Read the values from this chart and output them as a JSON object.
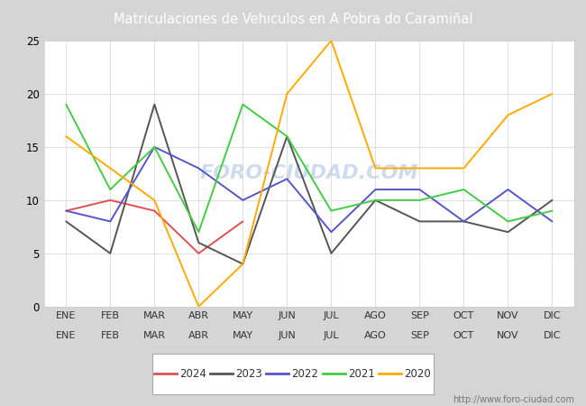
{
  "title": "Matriculaciones de Vehiculos en A Pobra do Caramiñal",
  "title_color": "#ffffff",
  "title_bg_color": "#5b8bd0",
  "months": [
    "ENE",
    "FEB",
    "MAR",
    "ABR",
    "MAY",
    "JUN",
    "JUL",
    "AGO",
    "SEP",
    "OCT",
    "NOV",
    "DIC"
  ],
  "series": {
    "2024": {
      "color": "#e05050",
      "data": [
        9,
        10,
        9,
        5,
        8,
        null,
        null,
        null,
        null,
        null,
        null,
        null
      ]
    },
    "2023": {
      "color": "#555555",
      "data": [
        8,
        5,
        19,
        6,
        4,
        16,
        5,
        10,
        8,
        8,
        7,
        10
      ]
    },
    "2022": {
      "color": "#5555cc",
      "data": [
        9,
        8,
        15,
        13,
        10,
        12,
        7,
        11,
        11,
        8,
        11,
        8
      ]
    },
    "2021": {
      "color": "#44cc44",
      "data": [
        19,
        11,
        15,
        7,
        19,
        16,
        9,
        10,
        10,
        11,
        8,
        9
      ]
    },
    "2020": {
      "color": "#ffaa00",
      "data": [
        16,
        13,
        10,
        0,
        4,
        20,
        25,
        13,
        13,
        13,
        18,
        20
      ]
    }
  },
  "ylim": [
    0,
    25
  ],
  "yticks": [
    0,
    5,
    10,
    15,
    20,
    25
  ],
  "fig_bg_color": "#d5d5d5",
  "plot_bg_color": "#f0f0f0",
  "plot_inner_bg": "#ffffff",
  "grid_color": "#e0e0e0",
  "watermark": "FORO-CIUDAD.COM",
  "watermark_color": "#b8cce4",
  "url": "http://www.foro-ciudad.com",
  "legend_years": [
    "2024",
    "2023",
    "2022",
    "2021",
    "2020"
  ],
  "legend_bg": "#ffffff",
  "legend_border": "#aaaaaa"
}
